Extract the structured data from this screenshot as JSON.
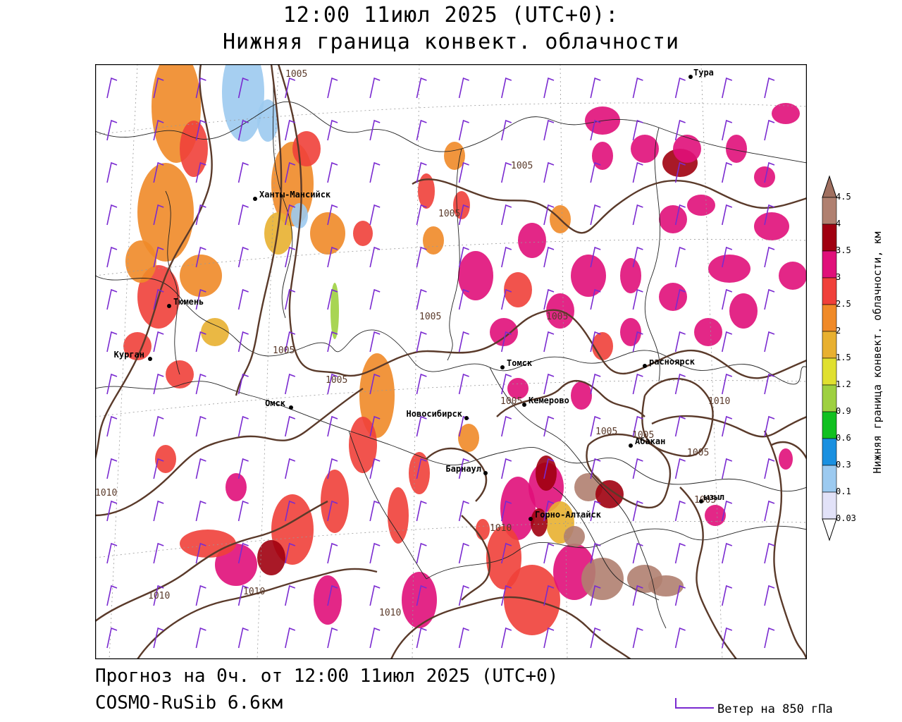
{
  "title": {
    "line1": "12:00 11июл 2025 (UTC+0):",
    "line2": "Нижняя граница конвект. облачности"
  },
  "footer": {
    "forecast": "Прогноз на 0ч. от 12:00 11июл 2025 (UTC+0)",
    "model": "COSMO-RuSib 6.6км",
    "wind_label": "Ветер на 850 гПа"
  },
  "legend": {
    "title": "Нижняя граница конвект. облачности, км",
    "levels": [
      {
        "value": "4.5",
        "color": "#a07060"
      },
      {
        "value": "4",
        "color": "#b08070"
      },
      {
        "value": "3.5",
        "color": "#a00010"
      },
      {
        "value": "3",
        "color": "#e0107a"
      },
      {
        "value": "2.5",
        "color": "#f0403a"
      },
      {
        "value": "2",
        "color": "#f08a28"
      },
      {
        "value": "1.5",
        "color": "#e8b030"
      },
      {
        "value": "1.2",
        "color": "#e0e030"
      },
      {
        "value": "0.9",
        "color": "#9ed040"
      },
      {
        "value": "0.6",
        "color": "#10c020"
      },
      {
        "value": "0.3",
        "color": "#1a90e0"
      },
      {
        "value": "0.1",
        "color": "#9ccaf0"
      },
      {
        "value": "0.03",
        "color": "#e2e2f8"
      }
    ]
  },
  "cities": [
    {
      "name": "Тура"
    },
    {
      "name": "Ханты-Мансийск"
    },
    {
      "name": "Тюмень"
    },
    {
      "name": "Курган"
    },
    {
      "name": "Омск"
    },
    {
      "name": "Томск"
    },
    {
      "name": "Новосибирск"
    },
    {
      "name": "Кемерово"
    },
    {
      "name": "Красноярск",
      "text": "расноярск"
    },
    {
      "name": "Абакан"
    },
    {
      "name": "Барнаул"
    },
    {
      "name": "Горно-Алтайск"
    },
    {
      "name": "Кызыл",
      "text": "ызыл"
    }
  ],
  "isobars": [
    "1005",
    "1005",
    "1005",
    "1005",
    "1005",
    "1005",
    "1005",
    "1005",
    "1005",
    "1005",
    "1005",
    "1005",
    "1010",
    "1010",
    "1010",
    "1010",
    "1010",
    "1010"
  ],
  "colors": {
    "isobar": "#5a3a2a",
    "wind_barb": "#7a2ad0",
    "border": "#000000"
  }
}
